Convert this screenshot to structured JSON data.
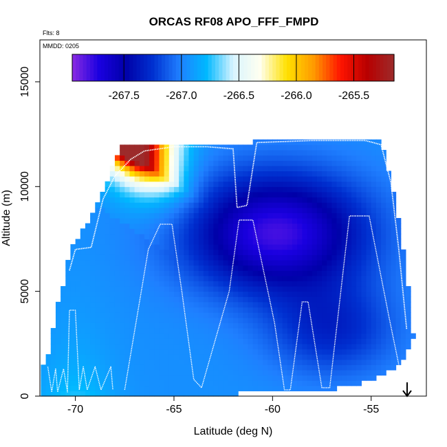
{
  "chart_data": {
    "type": "heatmap",
    "title": "ORCAS RF08 APO_FFF_FMPD",
    "flights_note": "Flts: 8",
    "date_note": "MMDD: 0205",
    "xlabel": "Latitude (deg N)",
    "ylabel": "Altitude (m)",
    "xlim": [
      -71.8,
      -52.2
    ],
    "ylim": [
      0,
      17000
    ],
    "x_ticks": [
      -70,
      -65,
      -60,
      -55
    ],
    "x_tick_labels": [
      "-70",
      "-65",
      "-60",
      "-55"
    ],
    "y_ticks": [
      0,
      5000,
      10000,
      15000
    ],
    "y_tick_labels": [
      "0",
      "5000",
      "10000",
      "15000"
    ],
    "colorbar": {
      "range": [
        -267.95,
        -265.15
      ],
      "ticks": [
        -267.5,
        -267.0,
        -266.5,
        -266.0,
        -265.5
      ],
      "tick_labels": [
        "-267.5",
        "-267.0",
        "-266.5",
        "-266.0",
        "-265.5"
      ],
      "colors": [
        "#8a2be2",
        "#1a00e0",
        "#0000a8",
        "#0030d0",
        "#1f7fff",
        "#00b8ff",
        "#d8f4ff",
        "#fffff0",
        "#ffe100",
        "#ff9a00",
        "#ff1400",
        "#b80000",
        "#9c2b2b"
      ]
    },
    "flight_track": [
      [
        -71.4,
        1400
      ],
      [
        -71.2,
        200
      ],
      [
        -71.0,
        1300
      ],
      [
        -70.9,
        200
      ],
      [
        -70.6,
        1300
      ],
      [
        -70.4,
        200
      ],
      [
        -70.3,
        4100
      ],
      [
        -70.0,
        4100
      ],
      [
        -69.8,
        300
      ],
      [
        -69.6,
        1400
      ],
      [
        -69.4,
        300
      ],
      [
        -69.0,
        1400
      ],
      [
        -68.7,
        300
      ],
      [
        -68.2,
        1400
      ],
      [
        -68.1,
        300
      ],
      [
        -70.3,
        6000
      ],
      [
        -70.0,
        7000
      ],
      [
        -69.2,
        7100
      ],
      [
        -68.6,
        9400
      ],
      [
        -68.0,
        10500
      ],
      [
        -67.2,
        11300
      ],
      [
        -66.5,
        11700
      ],
      [
        -65.0,
        11900
      ],
      [
        -63.3,
        11900
      ],
      [
        -62.0,
        11800
      ],
      [
        -61.8,
        9000
      ],
      [
        -61.3,
        9100
      ],
      [
        -60.8,
        12100
      ],
      [
        -58.0,
        12200
      ],
      [
        -55.3,
        12200
      ],
      [
        -54.5,
        12000
      ],
      [
        -54.0,
        10200
      ],
      [
        -53.6,
        7000
      ],
      [
        -53.2,
        3200
      ],
      [
        -67.5,
        300
      ],
      [
        -66.3,
        7000
      ],
      [
        -65.7,
        8200
      ],
      [
        -65.1,
        8200
      ],
      [
        -64.6,
        5000
      ],
      [
        -64.0,
        800
      ],
      [
        -63.6,
        400
      ],
      [
        -62.2,
        5000
      ],
      [
        -61.7,
        8400
      ],
      [
        -61.0,
        8400
      ],
      [
        -59.9,
        3500
      ],
      [
        -59.4,
        300
      ],
      [
        -59.1,
        300
      ],
      [
        -58.5,
        4500
      ],
      [
        -58.2,
        4500
      ],
      [
        -57.5,
        400
      ],
      [
        -57.1,
        400
      ],
      [
        -56.1,
        8600
      ],
      [
        -55.1,
        8600
      ],
      [
        -54.1,
        3800
      ],
      [
        -53.6,
        1500
      ]
    ],
    "field_description": "APO anomaly field: low values (about -267.8) in a core near -60 deg N at 6000-10000 m, high values (about -265.3) at top-left near -68 deg N, 11000-12000 m; near-surface values about -267.0 to -267.2"
  }
}
